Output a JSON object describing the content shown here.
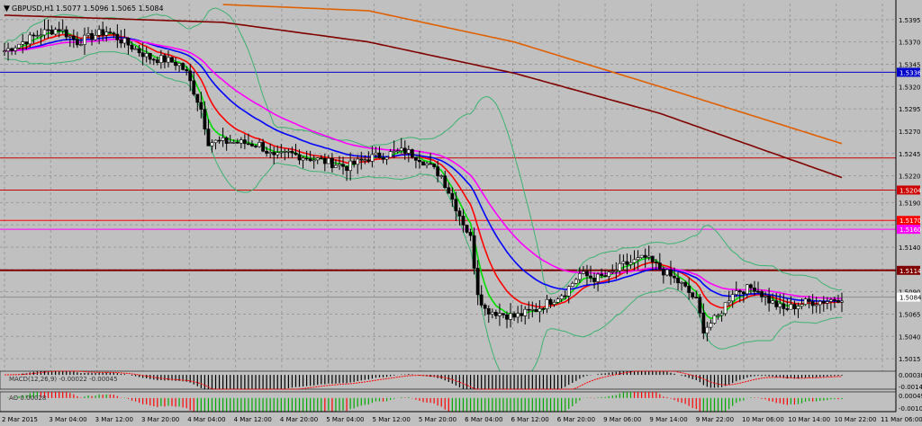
{
  "header": {
    "symbol": "GBPUSD,H1",
    "ohlc": "1.5077 1.5096 1.5065 1.5084",
    "osc1_label": "MACD(12,26,9) -0.00022 -0.00045",
    "osc2_label": "AO 0.00028"
  },
  "colors": {
    "background": "#c0c0c0",
    "grid": "#9a9a9a",
    "candle": "#000000",
    "ema_fast": "#00dd00",
    "ema_mid": "#ff0000",
    "ema_slow": "#0000ff",
    "ema_magenta": "#ff00ff",
    "ma_200": "#800000",
    "ma_400": "#e06000",
    "bollinger": "#3cb371"
  },
  "chart_data": {
    "type": "candlestick",
    "symbol": "GBPUSD",
    "timeframe": "H1",
    "ylim": [
      1.5004,
      1.5413
    ],
    "y_ticks": [
      "1.5395",
      "1.5370",
      "1.5345",
      "1.5320",
      "1.5295",
      "1.5270",
      "1.5245",
      "1.5220",
      "1.5190",
      "1.5165",
      "1.5140",
      "1.5115",
      "1.5090",
      "1.5065",
      "1.5040",
      "1.5015"
    ],
    "x_ticks": [
      "2 Mar 2015",
      "3 Mar 04:00",
      "3 Mar 12:00",
      "3 Mar 20:00",
      "4 Mar 04:00",
      "4 Mar 12:00",
      "4 Mar 20:00",
      "5 Mar 04:00",
      "5 Mar 12:00",
      "5 Mar 20:00",
      "6 Mar 04:00",
      "6 Mar 12:00",
      "6 Mar 20:00",
      "9 Mar 06:00",
      "9 Mar 14:00",
      "9 Mar 22:00",
      "10 Mar 06:00",
      "10 Mar 14:00",
      "10 Mar 22:00",
      "11 Mar 06:00"
    ],
    "hlines": [
      {
        "value": 1.5336,
        "color": "#0000cc",
        "label": "1.5336"
      },
      {
        "value": 1.524,
        "color": "#cc0000",
        "label": ""
      },
      {
        "value": 1.5204,
        "color": "#cc0000",
        "label": "1.5204"
      },
      {
        "value": 1.517,
        "color": "#ff0000",
        "label": "1.5170"
      },
      {
        "value": 1.516,
        "color": "#ff00ff",
        "label": "1.5160"
      },
      {
        "value": 1.5114,
        "color": "#800000",
        "label": "1.5114"
      }
    ],
    "current_price": {
      "value": 1.5084,
      "label": "1.5084"
    },
    "close_anchors": [
      [
        0,
        1.536
      ],
      [
        5,
        1.537
      ],
      [
        10,
        1.538
      ],
      [
        15,
        1.5385
      ],
      [
        20,
        1.537
      ],
      [
        25,
        1.5378
      ],
      [
        28,
        1.5382
      ],
      [
        32,
        1.5372
      ],
      [
        36,
        1.5362
      ],
      [
        40,
        1.5352
      ],
      [
        44,
        1.535
      ],
      [
        48,
        1.5345
      ],
      [
        50,
        1.5335
      ],
      [
        54,
        1.5295
      ],
      [
        56,
        1.5258
      ],
      [
        62,
        1.5258
      ],
      [
        70,
        1.5255
      ],
      [
        74,
        1.524
      ],
      [
        78,
        1.5245
      ],
      [
        86,
        1.5238
      ],
      [
        94,
        1.523
      ],
      [
        100,
        1.524
      ],
      [
        106,
        1.5245
      ],
      [
        110,
        1.5248
      ],
      [
        114,
        1.524
      ],
      [
        120,
        1.522
      ],
      [
        124,
        1.5185
      ],
      [
        128,
        1.515
      ],
      [
        130,
        1.509
      ],
      [
        132,
        1.507
      ],
      [
        140,
        1.5062
      ],
      [
        146,
        1.507
      ],
      [
        150,
        1.508
      ],
      [
        154,
        1.509
      ],
      [
        158,
        1.511
      ],
      [
        162,
        1.5105
      ],
      [
        166,
        1.5108
      ],
      [
        170,
        1.512
      ],
      [
        176,
        1.5128
      ],
      [
        182,
        1.511
      ],
      [
        186,
        1.5098
      ],
      [
        190,
        1.508
      ],
      [
        192,
        1.5048
      ],
      [
        196,
        1.5062
      ],
      [
        200,
        1.509
      ],
      [
        206,
        1.5095
      ],
      [
        210,
        1.508
      ],
      [
        214,
        1.507
      ],
      [
        220,
        1.5078
      ],
      [
        226,
        1.508
      ],
      [
        230,
        1.5084
      ]
    ],
    "ma_200": [
      [
        0,
        1.54
      ],
      [
        60,
        1.5392
      ],
      [
        100,
        1.537
      ],
      [
        140,
        1.5335
      ],
      [
        180,
        1.529
      ],
      [
        230,
        1.5218
      ]
    ],
    "ma_400": [
      [
        60,
        1.5412
      ],
      [
        100,
        1.5405
      ],
      [
        140,
        1.537
      ],
      [
        180,
        1.532
      ],
      [
        230,
        1.5256
      ]
    ],
    "osc1_range": [
      -0.00148,
      0.00038
    ],
    "osc1_ticks": [
      "0.00038",
      "-0.00148"
    ],
    "osc2_range": [
      -0.00108,
      0.00049
    ],
    "osc2_ticks": [
      "0.00049",
      "-0.00108"
    ]
  }
}
